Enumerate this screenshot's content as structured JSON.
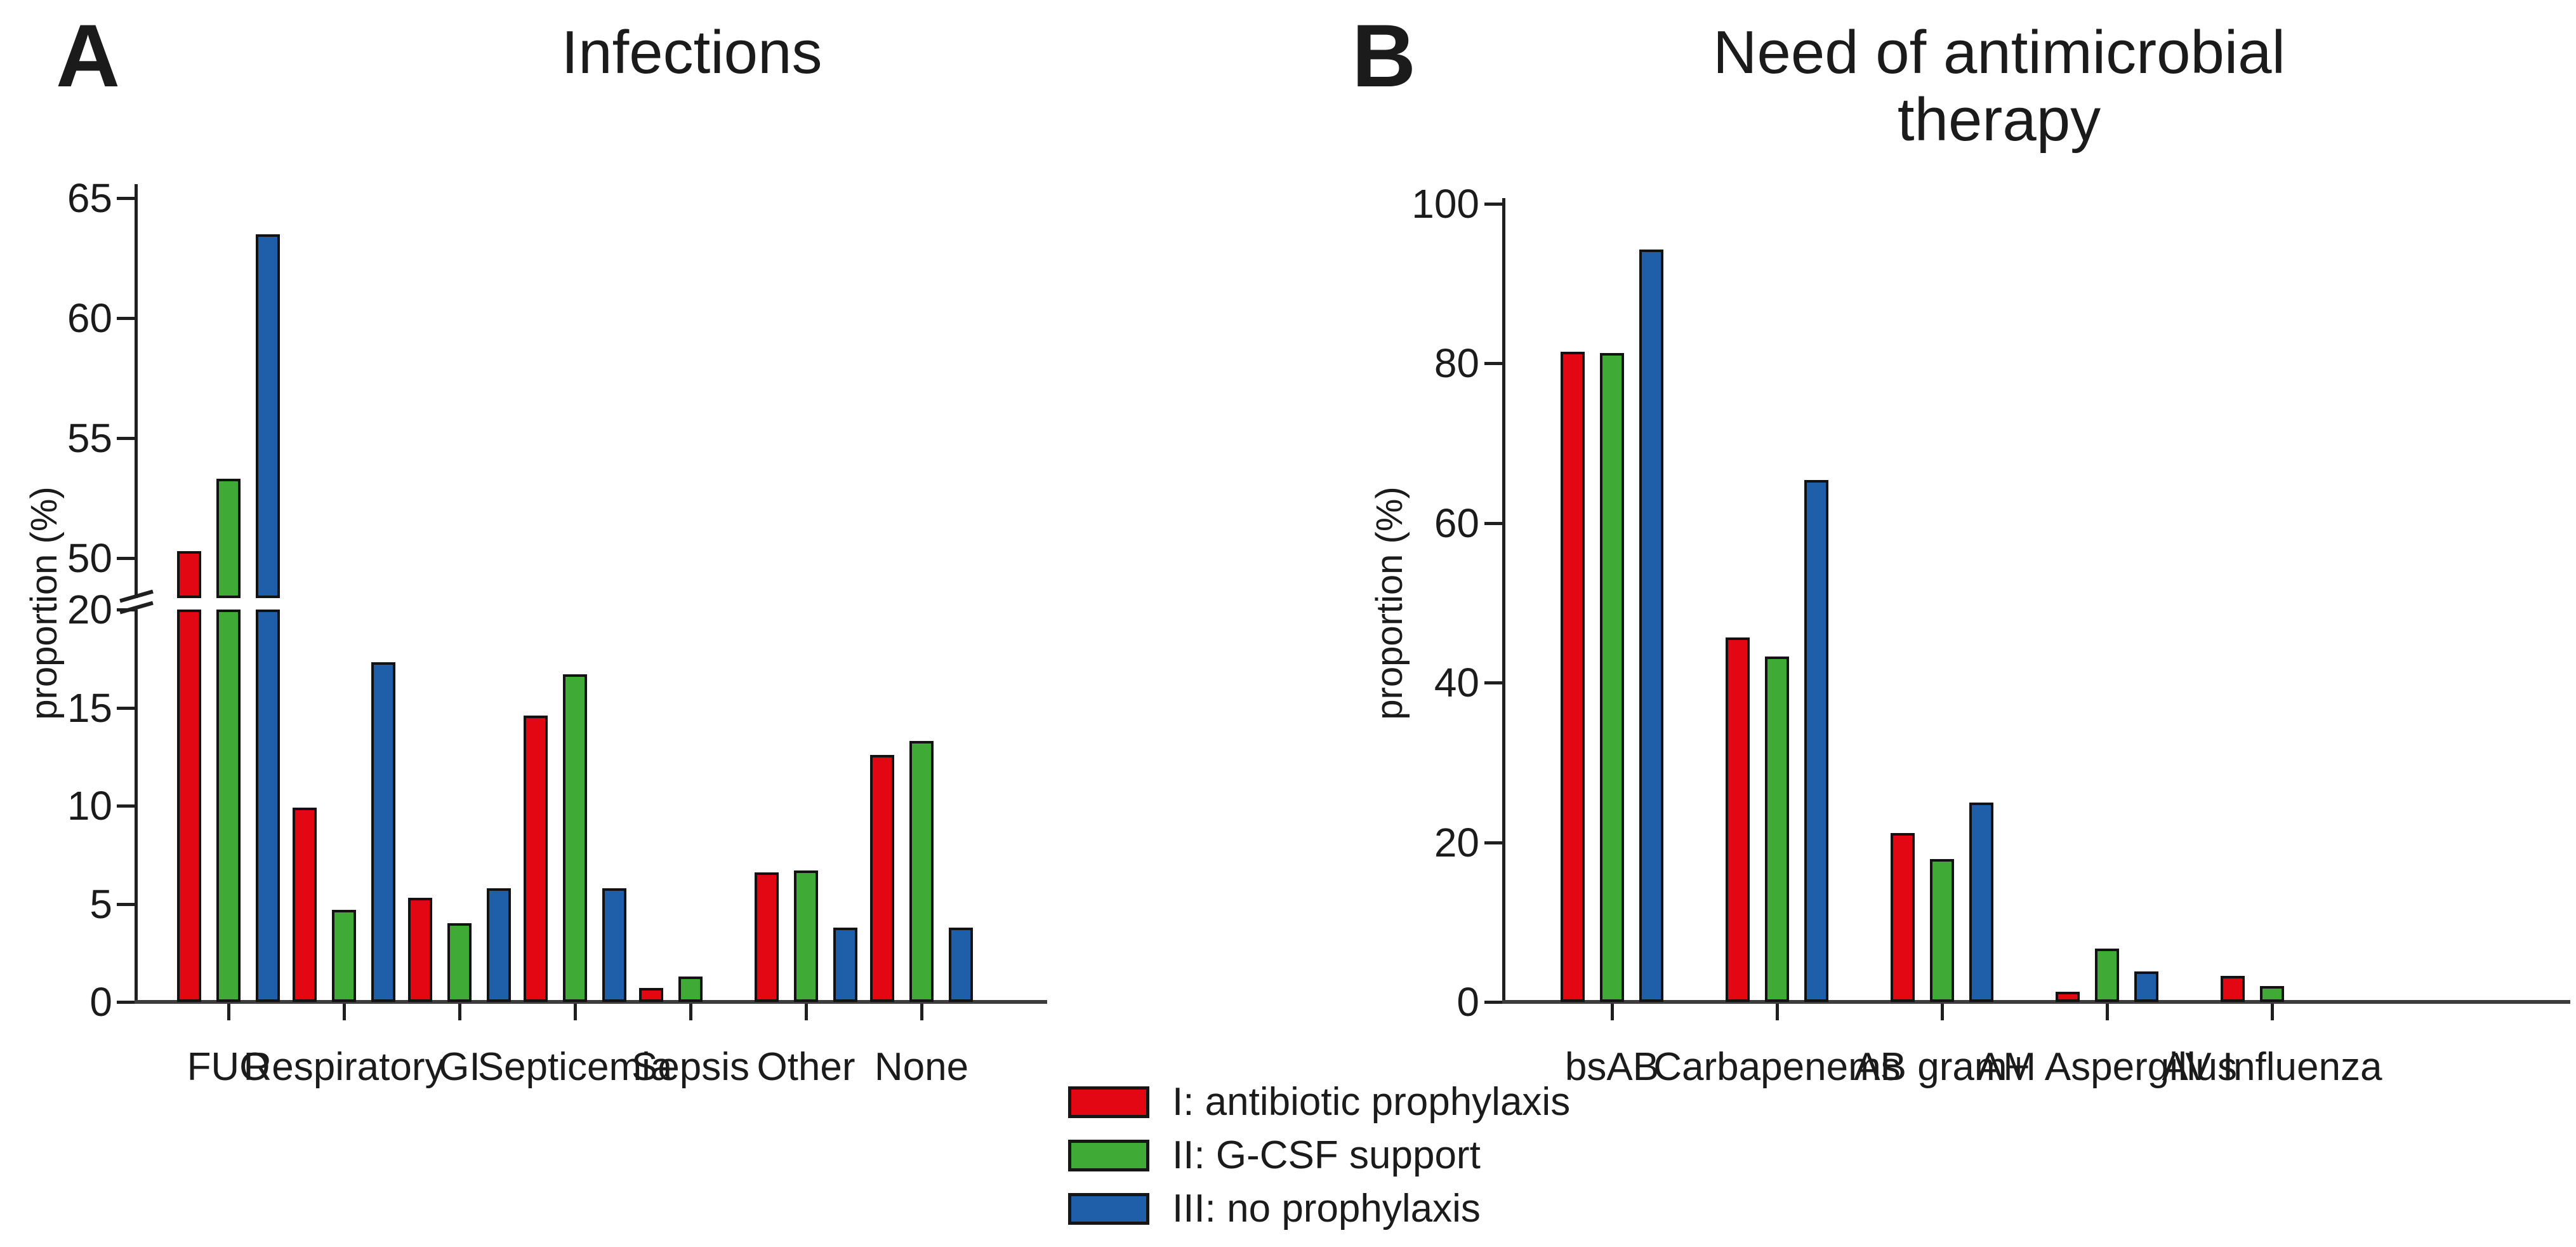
{
  "panels": [
    {
      "letter": "A",
      "title": "Infections",
      "ylabel": "proportion (%)"
    },
    {
      "letter": "B",
      "title": "Need of antimicrobial therapy",
      "ylabel": "proportion (%)"
    }
  ],
  "legend": {
    "items": [
      {
        "label": "I: antibiotic prophylaxis",
        "color": "#e30613"
      },
      {
        "label": "II: G-CSF support",
        "color": "#3faa35"
      },
      {
        "label": "III: no prophylaxis",
        "color": "#1f5fa9"
      }
    ]
  },
  "colors": {
    "red": "#e30613",
    "green": "#3faa35",
    "blue": "#1f5fa9",
    "axis": "#1f1f1f",
    "baseline": "#3d3d3d"
  },
  "chart_data": [
    {
      "type": "bar",
      "panel": "A",
      "title": "Infections",
      "ylabel": "proportion (%)",
      "axis_break": {
        "lower_range": [
          0,
          20
        ],
        "upper_range": [
          48,
          65
        ]
      },
      "yticks_lower": [
        0,
        5,
        10,
        15,
        20
      ],
      "yticks_upper": [
        50,
        55,
        60,
        65
      ],
      "grid": false,
      "categories": [
        "FUO",
        "Respiratory",
        "GI",
        "Septicemia",
        "Sepsis",
        "Other",
        "None"
      ],
      "series": [
        {
          "name": "I: antibiotic prophylaxis",
          "color": "#e30613",
          "values": [
            50.3,
            9.9,
            5.3,
            14.6,
            0.7,
            6.6,
            12.6
          ]
        },
        {
          "name": "II: G-CSF support",
          "color": "#3faa35",
          "values": [
            53.3,
            4.7,
            4.0,
            16.7,
            1.3,
            6.7,
            13.3
          ]
        },
        {
          "name": "III: no prophylaxis",
          "color": "#1f5fa9",
          "values": [
            63.5,
            17.3,
            5.8,
            5.8,
            0,
            3.8,
            3.8
          ]
        }
      ]
    },
    {
      "type": "bar",
      "panel": "B",
      "title": "Need of antimicrobial therapy",
      "ylabel": "proportion (%)",
      "ylim": [
        0,
        100
      ],
      "yticks": [
        0,
        20,
        40,
        60,
        80,
        100
      ],
      "grid": false,
      "categories": [
        "bsAB",
        "Carbapenems",
        "AB gram+",
        "AM Aspergillus",
        "AV Influenza"
      ],
      "series": [
        {
          "name": "I: antibiotic prophylaxis",
          "color": "#e30613",
          "values": [
            81.5,
            45.7,
            21.2,
            1.3,
            3.3
          ]
        },
        {
          "name": "II: G-CSF support",
          "color": "#3faa35",
          "values": [
            81.3,
            43.3,
            17.9,
            6.7,
            2.0
          ]
        },
        {
          "name": "III: no prophylaxis",
          "color": "#1f5fa9",
          "values": [
            94.3,
            65.4,
            25.0,
            3.8,
            0
          ]
        }
      ]
    }
  ]
}
